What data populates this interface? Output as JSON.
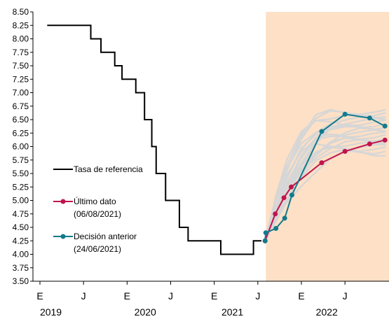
{
  "chart_data": {
    "type": "line",
    "ylim": [
      3.5,
      8.5
    ],
    "yticks": [
      "3.50",
      "3.75",
      "4.00",
      "4.25",
      "4.50",
      "4.75",
      "5.00",
      "5.25",
      "5.50",
      "5.75",
      "6.00",
      "6.25",
      "6.50",
      "6.75",
      "7.00",
      "7.25",
      "7.50",
      "7.75",
      "8.00",
      "8.25",
      "8.50"
    ],
    "xlim": [
      0,
      47
    ],
    "xticks": [
      {
        "m": 0,
        "label": "E"
      },
      {
        "m": 6,
        "label": "J"
      },
      {
        "m": 12,
        "label": "E"
      },
      {
        "m": 18,
        "label": "J"
      },
      {
        "m": 24,
        "label": "E"
      },
      {
        "m": 30,
        "label": "J"
      },
      {
        "m": 36,
        "label": "E"
      },
      {
        "m": 42,
        "label": "J"
      }
    ],
    "years": [
      {
        "m": 1.5,
        "label": "2019"
      },
      {
        "m": 14.5,
        "label": "2020"
      },
      {
        "m": 26.5,
        "label": "2021"
      },
      {
        "m": 39.5,
        "label": "2022"
      }
    ],
    "forecast_start": 31.1,
    "forecast_color": "#fde0c6",
    "series": [
      {
        "name": "Tasa de referencia",
        "color": "#000000",
        "kind": "step",
        "points": [
          [
            1,
            8.25
          ],
          [
            7,
            8.0
          ],
          [
            8.4,
            7.75
          ],
          [
            10.3,
            7.5
          ],
          [
            11.3,
            7.25
          ],
          [
            13.2,
            7.0
          ],
          [
            14.4,
            6.5
          ],
          [
            15.4,
            6.0
          ],
          [
            16.0,
            5.5
          ],
          [
            17.3,
            5.0
          ],
          [
            19.2,
            4.5
          ],
          [
            20.4,
            4.25
          ],
          [
            24.9,
            4.0
          ],
          [
            29.4,
            4.25
          ],
          [
            30.5,
            4.25
          ]
        ]
      },
      {
        "name": "Último dato",
        "sublabel": "(06/08/2021)",
        "color": "#c0144c",
        "kind": "marker",
        "points": [
          [
            31.0,
            4.25
          ],
          [
            32.4,
            4.75
          ],
          [
            33.6,
            5.05
          ],
          [
            34.6,
            5.25
          ],
          [
            38.8,
            5.7
          ],
          [
            42.0,
            5.91
          ],
          [
            45.4,
            6.05
          ],
          [
            47.5,
            6.12
          ]
        ]
      },
      {
        "name": "Decisión anterior",
        "sublabel": "(24/06/2021)",
        "color": "#137a8c",
        "kind": "marker",
        "points": [
          [
            31.0,
            4.25
          ],
          [
            31.1,
            4.4
          ],
          [
            32.5,
            4.48
          ],
          [
            33.7,
            4.67
          ],
          [
            34.7,
            5.1
          ],
          [
            38.8,
            6.28
          ],
          [
            42.0,
            6.6
          ],
          [
            45.4,
            6.53
          ],
          [
            47.5,
            6.38
          ]
        ]
      }
    ],
    "fan_color": "#d6d6d6"
  }
}
